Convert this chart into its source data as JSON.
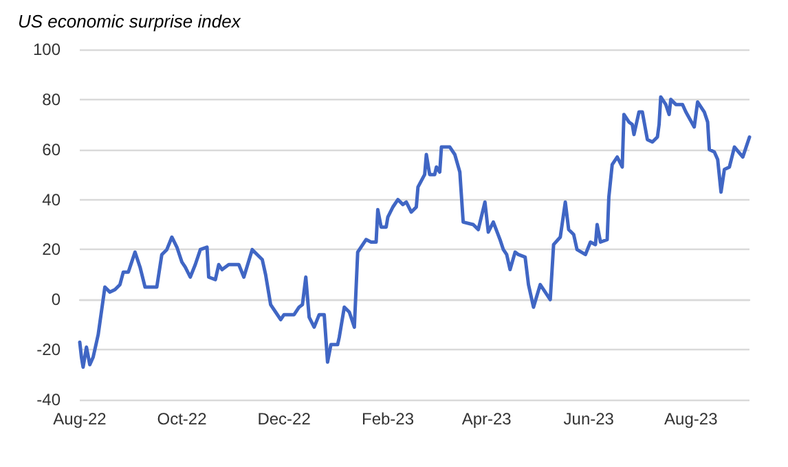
{
  "chart_data": {
    "type": "line",
    "title": "US economic surprise index",
    "x": [
      "2022-08-01",
      "2022-08-02",
      "2022-08-03",
      "2022-08-05",
      "2022-08-07",
      "2022-08-09",
      "2022-08-12",
      "2022-08-16",
      "2022-08-19",
      "2022-08-22",
      "2022-08-25",
      "2022-08-27",
      "2022-08-30",
      "2022-09-01",
      "2022-09-03",
      "2022-09-06",
      "2022-09-09",
      "2022-09-13",
      "2022-09-16",
      "2022-09-19",
      "2022-09-22",
      "2022-09-25",
      "2022-09-28",
      "2022-10-01",
      "2022-10-03",
      "2022-10-06",
      "2022-10-09",
      "2022-10-12",
      "2022-10-16",
      "2022-10-17",
      "2022-10-21",
      "2022-10-23",
      "2022-10-25",
      "2022-10-29",
      "2022-11-04",
      "2022-11-07",
      "2022-11-12",
      "2022-11-15",
      "2022-11-18",
      "2022-11-20",
      "2022-11-23",
      "2022-11-26",
      "2022-11-29",
      "2022-12-01",
      "2022-12-07",
      "2022-12-10",
      "2022-12-12",
      "2022-12-14",
      "2022-12-16",
      "2022-12-19",
      "2022-12-22",
      "2022-12-25",
      "2022-12-27",
      "2022-12-29",
      "2023-01-02",
      "2023-01-03",
      "2023-01-06",
      "2023-01-09",
      "2023-01-12",
      "2023-01-14",
      "2023-01-17",
      "2023-01-19",
      "2023-01-22",
      "2023-01-25",
      "2023-01-26",
      "2023-01-28",
      "2023-01-31",
      "2023-02-01",
      "2023-02-04",
      "2023-02-07",
      "2023-02-10",
      "2023-02-12",
      "2023-02-15",
      "2023-02-18",
      "2023-02-19",
      "2023-02-23",
      "2023-02-24",
      "2023-02-26",
      "2023-03-01",
      "2023-03-02",
      "2023-03-04",
      "2023-03-05",
      "2023-03-10",
      "2023-03-13",
      "2023-03-16",
      "2023-03-18",
      "2023-03-24",
      "2023-03-27",
      "2023-03-31",
      "2023-04-02",
      "2023-04-05",
      "2023-04-09",
      "2023-04-11",
      "2023-04-13",
      "2023-04-15",
      "2023-04-18",
      "2023-04-20",
      "2023-04-24",
      "2023-04-26",
      "2023-04-29",
      "2023-05-03",
      "2023-05-06",
      "2023-05-09",
      "2023-05-11",
      "2023-05-15",
      "2023-05-18",
      "2023-05-20",
      "2023-05-23",
      "2023-05-25",
      "2023-05-30",
      "2023-06-02",
      "2023-06-05",
      "2023-06-06",
      "2023-06-08",
      "2023-06-12",
      "2023-06-13",
      "2023-06-15",
      "2023-06-18",
      "2023-06-21",
      "2023-06-22",
      "2023-06-25",
      "2023-06-27",
      "2023-06-28",
      "2023-07-01",
      "2023-07-03",
      "2023-07-06",
      "2023-07-09",
      "2023-07-12",
      "2023-07-13",
      "2023-07-14",
      "2023-07-17",
      "2023-07-19",
      "2023-07-20",
      "2023-07-23",
      "2023-07-27",
      "2023-07-29",
      "2023-08-03",
      "2023-08-05",
      "2023-08-09",
      "2023-08-11",
      "2023-08-12",
      "2023-08-15",
      "2023-08-17",
      "2023-08-19",
      "2023-08-21",
      "2023-08-24",
      "2023-08-27",
      "2023-09-01",
      "2023-09-05"
    ],
    "series": [
      {
        "color": "#4066c4",
        "values": [
          -17,
          -23,
          -27,
          -19,
          -26,
          -23,
          -14,
          5,
          3,
          4,
          6,
          11,
          11,
          15,
          19,
          13,
          5,
          5,
          5,
          18,
          20,
          25,
          21,
          15,
          13,
          9,
          14,
          20,
          21,
          9,
          8,
          14,
          12,
          14,
          14,
          9,
          20,
          18,
          16,
          10,
          -2,
          -5,
          -8,
          -6,
          -6,
          -3,
          -2,
          9,
          -7,
          -11,
          -6,
          -6,
          -25,
          -18,
          -18,
          -15,
          -3,
          -5,
          -11,
          19,
          22,
          24,
          23,
          23,
          36,
          29,
          29,
          33,
          37,
          40,
          38,
          39,
          35,
          37,
          45,
          50,
          58,
          50,
          50,
          53,
          51,
          61,
          61,
          58,
          51,
          31,
          30,
          28,
          39,
          27,
          31,
          24,
          20,
          18,
          12,
          19,
          18,
          17,
          6,
          -3,
          6,
          3,
          0,
          22,
          25,
          39,
          28,
          26,
          20,
          18,
          23,
          22,
          30,
          23,
          24,
          41,
          54,
          57,
          53,
          74,
          71,
          70,
          66,
          75,
          75,
          64,
          63,
          65,
          70,
          81,
          78,
          74,
          80,
          78,
          78,
          75,
          69,
          79,
          75,
          71,
          60,
          59,
          56,
          43,
          52,
          53,
          61,
          57,
          65
        ]
      }
    ],
    "xlim": [
      "2022-08-01",
      "2023-09-05"
    ],
    "xticks": [
      {
        "value": "2022-08-01",
        "label": "Aug-22"
      },
      {
        "value": "2022-10-01",
        "label": "Oct-22"
      },
      {
        "value": "2022-12-01",
        "label": "Dec-22"
      },
      {
        "value": "2023-02-01",
        "label": "Feb-23"
      },
      {
        "value": "2023-04-01",
        "label": "Apr-23"
      },
      {
        "value": "2023-06-01",
        "label": "Jun-23"
      },
      {
        "value": "2023-08-01",
        "label": "Aug-23"
      }
    ],
    "ylim": [
      -40,
      100
    ],
    "yticks": [
      -40,
      -20,
      0,
      20,
      40,
      60,
      80,
      100
    ],
    "grid": "y",
    "marker": "none",
    "line_style": "solid"
  }
}
